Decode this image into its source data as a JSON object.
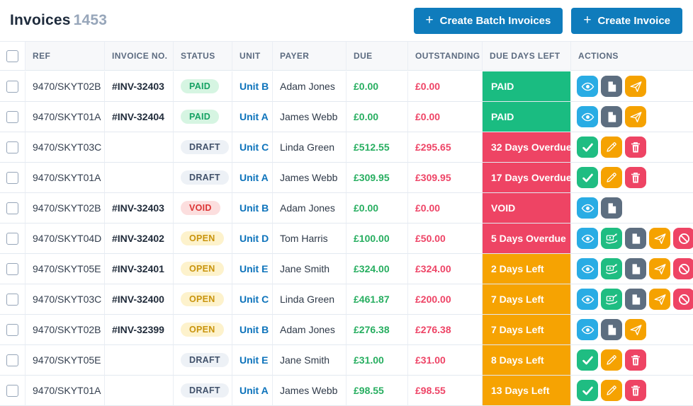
{
  "page": {
    "title": "Invoices",
    "count": "1453"
  },
  "toolbar": {
    "create_batch_label": "Create Batch Invoices",
    "create_label": "Create Invoice"
  },
  "table": {
    "columns": [
      "REF",
      "INVOICE NO.",
      "STATUS",
      "UNIT",
      "PAYER",
      "DUE",
      "OUTSTANDING",
      "DUE DAYS LEFT",
      "ACTIONS"
    ],
    "rows": [
      {
        "ref": "9470/SKYT02B",
        "invoice_no": "#INV-32403",
        "status": "PAID",
        "unit": "Unit B",
        "payer": "Adam Jones",
        "due": "£0.00",
        "outstanding": "£0.00",
        "due_days": "PAID",
        "due_variant": "green",
        "actions": [
          "view",
          "document",
          "send"
        ]
      },
      {
        "ref": "9470/SKYT01A",
        "invoice_no": "#INV-32404",
        "status": "PAID",
        "unit": "Unit A",
        "payer": "James Webb",
        "due": "£0.00",
        "outstanding": "£0.00",
        "due_days": "PAID",
        "due_variant": "green",
        "actions": [
          "view",
          "document",
          "send"
        ]
      },
      {
        "ref": "9470/SKYT03C",
        "invoice_no": "",
        "status": "DRAFT",
        "unit": "Unit C",
        "payer": "Linda Green",
        "due": "£512.55",
        "outstanding": "£295.65",
        "due_days": "32 Days Overdue",
        "due_variant": "red",
        "actions": [
          "approve",
          "edit",
          "delete"
        ]
      },
      {
        "ref": "9470/SKYT01A",
        "invoice_no": "",
        "status": "DRAFT",
        "unit": "Unit A",
        "payer": "James Webb",
        "due": "£309.95",
        "outstanding": "£309.95",
        "due_days": "17 Days Overdue",
        "due_variant": "red",
        "actions": [
          "approve",
          "edit",
          "delete"
        ]
      },
      {
        "ref": "9470/SKYT02B",
        "invoice_no": "#INV-32403",
        "status": "VOID",
        "unit": "Unit B",
        "payer": "Adam Jones",
        "due": "£0.00",
        "outstanding": "£0.00",
        "due_days": "VOID",
        "due_variant": "red",
        "actions": [
          "view",
          "document"
        ]
      },
      {
        "ref": "9470/SKYT04D",
        "invoice_no": "#INV-32402",
        "status": "OPEN",
        "unit": "Unit D",
        "payer": "Tom Harris",
        "due": "£100.00",
        "outstanding": "£50.00",
        "due_days": "5 Days Overdue",
        "due_variant": "red",
        "actions": [
          "view",
          "payment",
          "document",
          "send",
          "void"
        ]
      },
      {
        "ref": "9470/SKYT05E",
        "invoice_no": "#INV-32401",
        "status": "OPEN",
        "unit": "Unit E",
        "payer": "Jane Smith",
        "due": "£324.00",
        "outstanding": "£324.00",
        "due_days": "2 Days Left",
        "due_variant": "orange",
        "actions": [
          "view",
          "payment",
          "document",
          "send",
          "void"
        ]
      },
      {
        "ref": "9470/SKYT03C",
        "invoice_no": "#INV-32400",
        "status": "OPEN",
        "unit": "Unit C",
        "payer": "Linda Green",
        "due": "£461.87",
        "outstanding": "£200.00",
        "due_days": "7 Days Left",
        "due_variant": "orange",
        "actions": [
          "view",
          "payment",
          "document",
          "send",
          "void"
        ]
      },
      {
        "ref": "9470/SKYT02B",
        "invoice_no": "#INV-32399",
        "status": "OPEN",
        "unit": "Unit B",
        "payer": "Adam Jones",
        "due": "£276.38",
        "outstanding": "£276.38",
        "due_days": "7 Days Left",
        "due_variant": "orange",
        "actions": [
          "view",
          "document",
          "send"
        ]
      },
      {
        "ref": "9470/SKYT05E",
        "invoice_no": "",
        "status": "DRAFT",
        "unit": "Unit E",
        "payer": "Jane Smith",
        "due": "£31.00",
        "outstanding": "£31.00",
        "due_days": "8 Days Left",
        "due_variant": "orange",
        "actions": [
          "approve",
          "edit",
          "delete"
        ]
      },
      {
        "ref": "9470/SKYT01A",
        "invoice_no": "",
        "status": "DRAFT",
        "unit": "Unit A",
        "payer": "James Webb",
        "due": "£98.55",
        "outstanding": "£98.55",
        "due_days": "13 Days Left",
        "due_variant": "orange",
        "actions": [
          "approve",
          "edit",
          "delete"
        ]
      }
    ]
  },
  "colors": {
    "accent": "#0f7cbc",
    "title_count": "#97a6ba",
    "due_text": "#27ae60",
    "outstanding_text": "#ee4466",
    "unit_link": "#0d73bb",
    "status": {
      "paid": {
        "bg": "#d6f5e2",
        "text": "#15a263"
      },
      "open": {
        "bg": "#fdf2cc",
        "text": "#c9940d"
      },
      "draft": {
        "bg": "#edf1f6",
        "text": "#42526b"
      },
      "void": {
        "bg": "#fcdede",
        "text": "#dc3434"
      }
    },
    "due_days": {
      "green": "#1abc81",
      "red": "#ee4464",
      "orange": "#f6a302"
    },
    "actions": {
      "view": "#29ace4",
      "payment": "#1fbd82",
      "document": "#5d6e80",
      "send": "#f5a201",
      "approve": "#1fbd82",
      "edit": "#f5a201",
      "delete": "#ee4464",
      "void": "#ee4464"
    }
  }
}
